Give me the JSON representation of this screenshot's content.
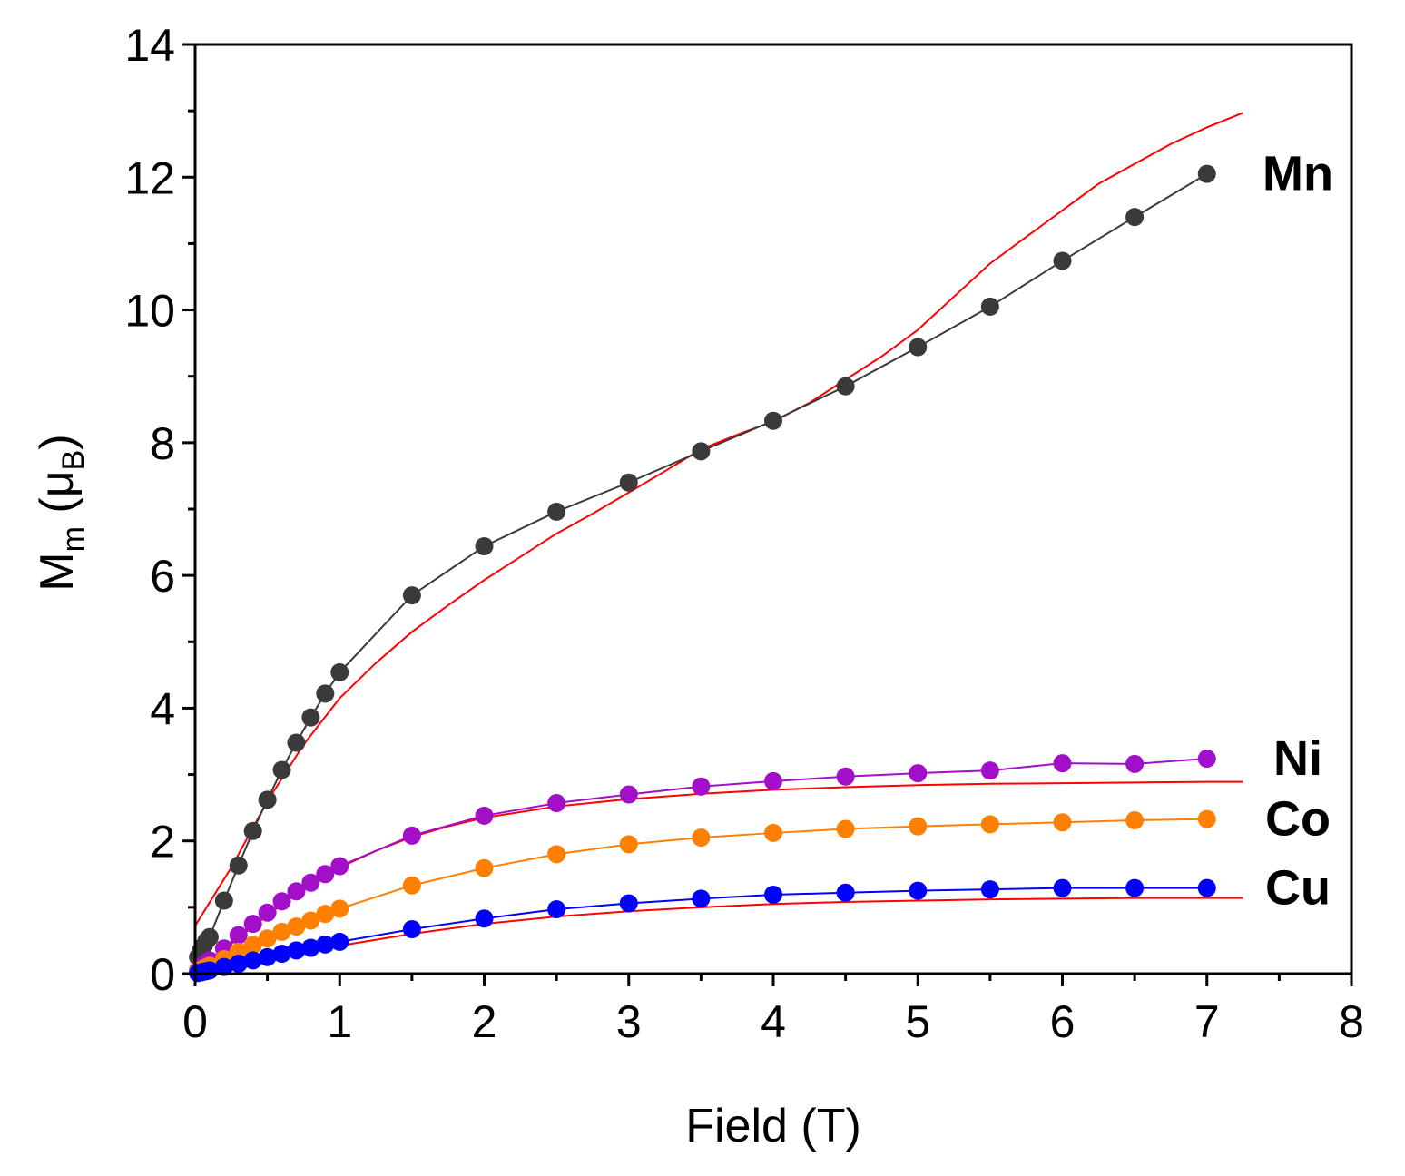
{
  "chart_data": {
    "type": "scatter",
    "title": "",
    "xlabel": "Field (T)",
    "ylabel": {
      "main": "M",
      "sub1": "m",
      "mid": " (μ",
      "sub2": "B",
      "end": ")"
    },
    "xlim": [
      0,
      8
    ],
    "ylim": [
      0,
      14
    ],
    "xticks": [
      0,
      1,
      2,
      3,
      4,
      5,
      6,
      7,
      8
    ],
    "yticks": [
      0,
      2,
      4,
      6,
      8,
      10,
      12,
      14
    ],
    "grid": false,
    "fit_color": "#ff0000",
    "series": [
      {
        "name": "Mn",
        "color": "#3a3a3a",
        "x": [
          0.02,
          0.04,
          0.06,
          0.08,
          0.1,
          0.2,
          0.3,
          0.4,
          0.5,
          0.6,
          0.7,
          0.8,
          0.9,
          1.0,
          1.5,
          2.0,
          2.5,
          3.0,
          3.5,
          4.0,
          4.5,
          5.0,
          5.5,
          6.0,
          6.5,
          7.0
        ],
        "y": [
          0.25,
          0.35,
          0.42,
          0.5,
          0.55,
          1.1,
          1.63,
          2.15,
          2.62,
          3.07,
          3.48,
          3.86,
          4.22,
          4.54,
          5.7,
          6.44,
          6.96,
          7.4,
          7.87,
          8.33,
          8.85,
          9.44,
          10.05,
          10.74,
          11.4,
          12.05
        ],
        "fit_x": [
          0,
          0.25,
          0.5,
          0.75,
          1.0,
          1.25,
          1.5,
          1.75,
          2.0,
          2.25,
          2.5,
          2.75,
          3.0,
          3.25,
          3.5,
          3.75,
          4.0,
          4.25,
          4.5,
          4.75,
          5.0,
          5.25,
          5.5,
          5.75,
          6.0,
          6.25,
          6.5,
          6.75,
          7.0,
          7.25
        ],
        "fit_y": [
          0.72,
          1.6,
          2.6,
          3.45,
          4.15,
          4.68,
          5.15,
          5.55,
          5.93,
          6.28,
          6.63,
          6.93,
          7.25,
          7.57,
          7.9,
          8.12,
          8.32,
          8.6,
          8.95,
          9.3,
          9.7,
          10.2,
          10.7,
          11.1,
          11.5,
          11.9,
          12.2,
          12.5,
          12.75,
          12.97
        ]
      },
      {
        "name": "Ni",
        "color": "#a10fc9",
        "x": [
          0.02,
          0.04,
          0.06,
          0.08,
          0.1,
          0.2,
          0.3,
          0.4,
          0.5,
          0.6,
          0.7,
          0.8,
          0.9,
          1.0,
          1.5,
          2.0,
          2.5,
          3.0,
          3.5,
          4.0,
          4.5,
          5.0,
          5.5,
          6.0,
          6.5,
          7.0
        ],
        "y": [
          0.05,
          0.1,
          0.13,
          0.17,
          0.2,
          0.38,
          0.58,
          0.75,
          0.92,
          1.09,
          1.24,
          1.37,
          1.5,
          1.62,
          2.08,
          2.38,
          2.57,
          2.7,
          2.82,
          2.9,
          2.97,
          3.02,
          3.06,
          3.17,
          3.16,
          3.24
        ],
        "fit_x": [
          0,
          0.25,
          0.5,
          0.75,
          1.0,
          1.25,
          1.5,
          1.75,
          2.0,
          2.5,
          3.0,
          3.5,
          4.0,
          4.5,
          5.0,
          5.5,
          6.0,
          6.5,
          7.0,
          7.25
        ],
        "fit_y": [
          0.0,
          0.45,
          0.88,
          1.28,
          1.6,
          1.85,
          2.06,
          2.22,
          2.35,
          2.52,
          2.63,
          2.71,
          2.77,
          2.81,
          2.84,
          2.86,
          2.87,
          2.88,
          2.89,
          2.89
        ]
      },
      {
        "name": "Co",
        "color": "#ff8000",
        "x": [
          0.02,
          0.04,
          0.06,
          0.08,
          0.1,
          0.2,
          0.3,
          0.4,
          0.5,
          0.6,
          0.7,
          0.8,
          0.9,
          1.0,
          1.5,
          2.0,
          2.5,
          3.0,
          3.5,
          4.0,
          4.5,
          5.0,
          5.5,
          6.0,
          6.5,
          7.0
        ],
        "y": [
          0.03,
          0.06,
          0.08,
          0.1,
          0.12,
          0.22,
          0.33,
          0.43,
          0.53,
          0.63,
          0.71,
          0.8,
          0.9,
          0.98,
          1.33,
          1.59,
          1.8,
          1.95,
          2.05,
          2.12,
          2.18,
          2.22,
          2.25,
          2.28,
          2.31,
          2.33
        ],
        "fit_x": [],
        "fit_y": []
      },
      {
        "name": "Cu",
        "color": "#0000ff",
        "x": [
          0.02,
          0.04,
          0.06,
          0.08,
          0.1,
          0.2,
          0.3,
          0.4,
          0.5,
          0.6,
          0.7,
          0.8,
          0.9,
          1.0,
          1.5,
          2.0,
          2.5,
          3.0,
          3.5,
          4.0,
          4.5,
          5.0,
          5.5,
          6.0,
          6.5,
          7.0
        ],
        "y": [
          0.01,
          0.02,
          0.03,
          0.04,
          0.05,
          0.1,
          0.15,
          0.2,
          0.25,
          0.3,
          0.35,
          0.39,
          0.44,
          0.48,
          0.67,
          0.83,
          0.97,
          1.06,
          1.13,
          1.19,
          1.22,
          1.25,
          1.27,
          1.29,
          1.29,
          1.29
        ],
        "fit_x": [
          0,
          0.25,
          0.5,
          0.75,
          1.0,
          1.5,
          2.0,
          2.5,
          3.0,
          3.5,
          4.0,
          4.5,
          5.0,
          5.5,
          6.0,
          6.5,
          7.0,
          7.25
        ],
        "fit_y": [
          0.0,
          0.13,
          0.25,
          0.34,
          0.42,
          0.6,
          0.75,
          0.86,
          0.94,
          1.0,
          1.05,
          1.08,
          1.1,
          1.12,
          1.13,
          1.14,
          1.14,
          1.14
        ]
      }
    ]
  }
}
